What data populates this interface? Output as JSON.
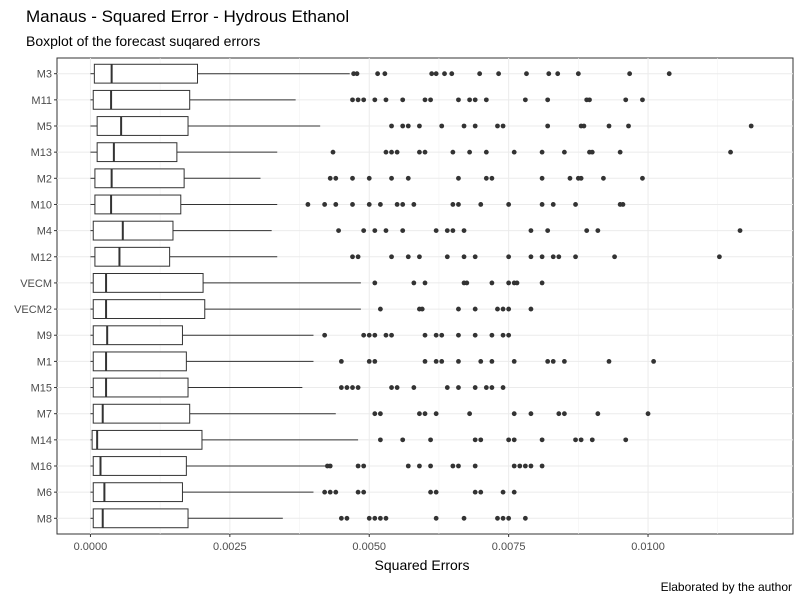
{
  "chart_data": {
    "type": "boxplot",
    "orientation": "horizontal",
    "title": "Manaus - Squared Error - Hydrous Ethanol",
    "subtitle": "Boxplot of the forecast suqared errors",
    "xlabel": "Squared Errors",
    "ylabel": "",
    "caption": "Elaborated by the author",
    "xlim": [
      -0.0006,
      0.0126
    ],
    "x_ticks": [
      0.0,
      0.0025,
      0.005,
      0.0075,
      0.01
    ],
    "x_tick_labels": [
      "0.0000",
      "0.0025",
      "0.0050",
      "0.0075",
      "0.0100"
    ],
    "grid": true,
    "legend": "none",
    "categories": [
      "M3",
      "M11",
      "M5",
      "M13",
      "M2",
      "M10",
      "M4",
      "M12",
      "VECM",
      "VECM2",
      "M9",
      "M1",
      "M15",
      "M7",
      "M14",
      "M16",
      "M6",
      "M8"
    ],
    "boxes": [
      {
        "min": 0.0,
        "q1": 7e-05,
        "median": 0.00038,
        "q3": 0.00192,
        "max": 0.00465,
        "outliers": [
          0.00472,
          0.00478,
          0.00515,
          0.00528,
          0.00612,
          0.0062,
          0.00635,
          0.00648,
          0.00698,
          0.00732,
          0.00782,
          0.00822,
          0.00838,
          0.00875,
          0.00967,
          0.01038
        ]
      },
      {
        "min": 0.0,
        "q1": 5e-05,
        "median": 0.00037,
        "q3": 0.00178,
        "max": 0.00368,
        "outliers": [
          0.0047,
          0.0048,
          0.0049,
          0.0051,
          0.0053,
          0.0056,
          0.006,
          0.0061,
          0.0066,
          0.0068,
          0.0069,
          0.0071,
          0.0078,
          0.0082,
          0.0089,
          0.00895,
          0.0096,
          0.0099
        ]
      },
      {
        "min": 0.0,
        "q1": 0.00012,
        "median": 0.00055,
        "q3": 0.00175,
        "max": 0.00412,
        "outliers": [
          0.0054,
          0.0056,
          0.0057,
          0.0059,
          0.0063,
          0.0067,
          0.0069,
          0.0073,
          0.0074,
          0.0082,
          0.0088,
          0.00885,
          0.0093,
          0.00965,
          0.01185
        ]
      },
      {
        "min": 0.0,
        "q1": 0.00012,
        "median": 0.00042,
        "q3": 0.00155,
        "max": 0.00335,
        "outliers": [
          0.00435,
          0.0053,
          0.0054,
          0.0055,
          0.0059,
          0.006,
          0.0065,
          0.0068,
          0.0071,
          0.0076,
          0.0081,
          0.0085,
          0.00895,
          0.009,
          0.0095,
          0.01148
        ]
      },
      {
        "min": 0.0,
        "q1": 8e-05,
        "median": 0.00038,
        "q3": 0.00168,
        "max": 0.00305,
        "outliers": [
          0.0043,
          0.0044,
          0.0047,
          0.005,
          0.0054,
          0.0057,
          0.0066,
          0.0071,
          0.0072,
          0.0081,
          0.0086,
          0.00875,
          0.0088,
          0.0092,
          0.0099
        ]
      },
      {
        "min": 0.0,
        "q1": 8e-05,
        "median": 0.00037,
        "q3": 0.00162,
        "max": 0.00335,
        "outliers": [
          0.0039,
          0.0042,
          0.0044,
          0.0047,
          0.005,
          0.0052,
          0.0055,
          0.0056,
          0.0058,
          0.0065,
          0.0066,
          0.007,
          0.0075,
          0.0081,
          0.0083,
          0.0087,
          0.0095,
          0.00955
        ]
      },
      {
        "min": 0.0,
        "q1": 5e-05,
        "median": 0.00058,
        "q3": 0.00148,
        "max": 0.00325,
        "outliers": [
          0.00445,
          0.0049,
          0.0051,
          0.0053,
          0.0056,
          0.0062,
          0.0064,
          0.0065,
          0.0067,
          0.0079,
          0.0082,
          0.0089,
          0.0091,
          0.01165
        ]
      },
      {
        "min": 0.0,
        "q1": 8e-05,
        "median": 0.00052,
        "q3": 0.00142,
        "max": 0.00335,
        "outliers": [
          0.0047,
          0.0048,
          0.0054,
          0.0057,
          0.0059,
          0.0064,
          0.0067,
          0.0069,
          0.0075,
          0.0079,
          0.0081,
          0.0083,
          0.0084,
          0.0087,
          0.0094,
          0.01128
        ]
      },
      {
        "min": 0.0,
        "q1": 5e-05,
        "median": 0.00028,
        "q3": 0.00202,
        "max": 0.00485,
        "outliers": [
          0.0051,
          0.0058,
          0.006,
          0.0067,
          0.00675,
          0.0072,
          0.0075,
          0.0076,
          0.00765,
          0.0081
        ]
      },
      {
        "min": 0.0,
        "q1": 5e-05,
        "median": 0.00028,
        "q3": 0.00205,
        "max": 0.00485,
        "outliers": [
          0.0052,
          0.0059,
          0.00595,
          0.0066,
          0.0069,
          0.0073,
          0.0074,
          0.0075,
          0.0079
        ]
      },
      {
        "min": 0.0,
        "q1": 5e-05,
        "median": 0.0003,
        "q3": 0.00165,
        "max": 0.004,
        "outliers": [
          0.0042,
          0.0049,
          0.005,
          0.0051,
          0.0053,
          0.0054,
          0.006,
          0.0062,
          0.0063,
          0.0066,
          0.0069,
          0.0072,
          0.0074,
          0.0075
        ]
      },
      {
        "min": 0.0,
        "q1": 5e-05,
        "median": 0.00028,
        "q3": 0.00172,
        "max": 0.004,
        "outliers": [
          0.0045,
          0.005,
          0.0051,
          0.006,
          0.0062,
          0.0063,
          0.0066,
          0.007,
          0.0072,
          0.0076,
          0.0082,
          0.0083,
          0.0085,
          0.0093,
          0.0101
        ]
      },
      {
        "min": 0.0,
        "q1": 5e-05,
        "median": 0.00028,
        "q3": 0.00175,
        "max": 0.0038,
        "outliers": [
          0.0045,
          0.0046,
          0.0047,
          0.0048,
          0.0054,
          0.0055,
          0.0058,
          0.0064,
          0.0066,
          0.0069,
          0.0071,
          0.0072,
          0.0074
        ]
      },
      {
        "min": 0.0,
        "q1": 5e-05,
        "median": 0.00022,
        "q3": 0.00178,
        "max": 0.0044,
        "outliers": [
          0.0051,
          0.0052,
          0.0059,
          0.006,
          0.0062,
          0.0068,
          0.0076,
          0.0079,
          0.0084,
          0.0085,
          0.0091,
          0.01
        ]
      },
      {
        "min": 0.0,
        "q1": 3e-05,
        "median": 0.00012,
        "q3": 0.002,
        "max": 0.0048,
        "outliers": [
          0.0052,
          0.0056,
          0.0061,
          0.0069,
          0.007,
          0.0075,
          0.0076,
          0.0081,
          0.0087,
          0.0088,
          0.009,
          0.0096
        ]
      },
      {
        "min": 0.0,
        "q1": 5e-05,
        "median": 0.00018,
        "q3": 0.00172,
        "max": 0.0043,
        "outliers": [
          0.00425,
          0.0043,
          0.0048,
          0.0049,
          0.0057,
          0.0059,
          0.0061,
          0.0065,
          0.0066,
          0.0069,
          0.0076,
          0.0077,
          0.0078,
          0.0079,
          0.0081
        ]
      },
      {
        "min": 0.0,
        "q1": 5e-05,
        "median": 0.00025,
        "q3": 0.00165,
        "max": 0.004,
        "outliers": [
          0.0042,
          0.0043,
          0.0044,
          0.0048,
          0.0049,
          0.0061,
          0.0062,
          0.0069,
          0.007,
          0.0074,
          0.0076
        ]
      },
      {
        "min": 0.0,
        "q1": 5e-05,
        "median": 0.00022,
        "q3": 0.00175,
        "max": 0.00345,
        "outliers": [
          0.0045,
          0.0046,
          0.005,
          0.0051,
          0.0052,
          0.0053,
          0.0062,
          0.0067,
          0.0073,
          0.0074,
          0.0075,
          0.0078
        ]
      }
    ]
  }
}
